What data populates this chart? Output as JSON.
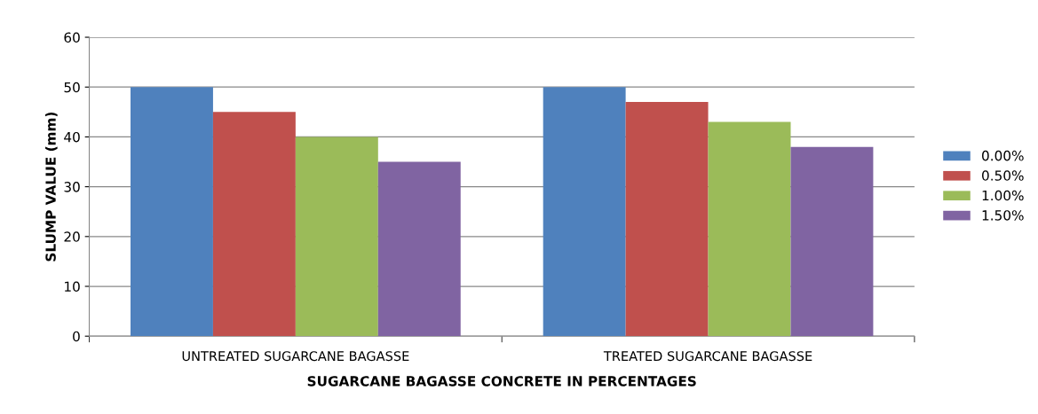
{
  "chart_data": {
    "type": "bar",
    "xlabel": "SUGARCANE BAGASSE CONCRETE IN PERCENTAGES",
    "ylabel": "SLUMP VALUE (mm)",
    "categories": [
      "UNTREATED SUGARCANE BAGASSE",
      "TREATED SUGARCANE BAGASSE"
    ],
    "series": [
      {
        "name": "0.00%",
        "color": "#4f81bd",
        "values": [
          50,
          50
        ]
      },
      {
        "name": "0.50%",
        "color": "#c0504d",
        "values": [
          45,
          47
        ]
      },
      {
        "name": "1.00%",
        "color": "#9bbb59",
        "values": [
          40,
          43
        ]
      },
      {
        "name": "1.50%",
        "color": "#8064a2",
        "values": [
          35,
          38
        ]
      }
    ],
    "ylim": [
      0,
      60
    ],
    "yticks": [
      0,
      10,
      20,
      30,
      40,
      50,
      60
    ],
    "grid": "y",
    "legend": "right"
  }
}
